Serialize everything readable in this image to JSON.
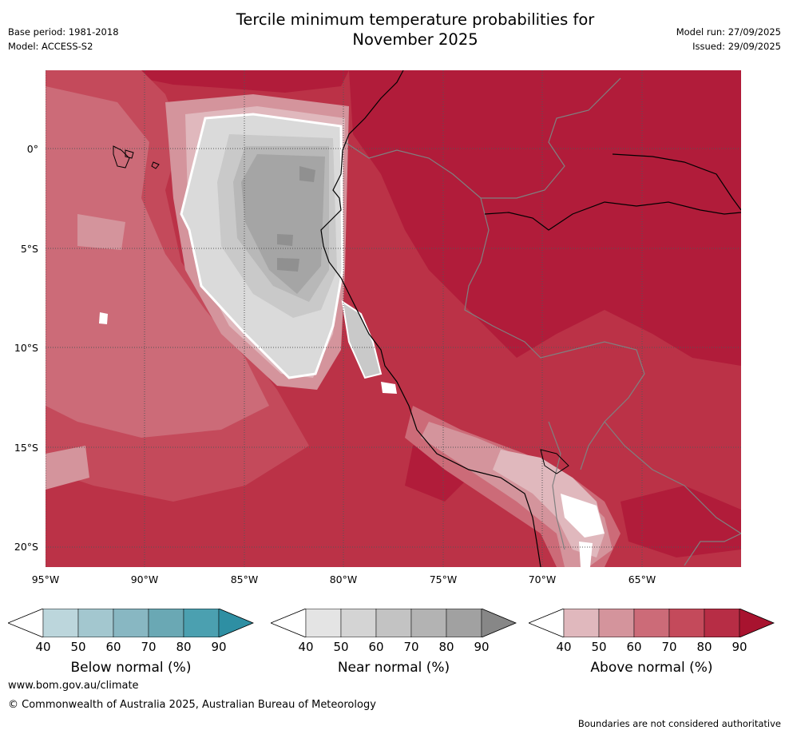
{
  "title_lines": [
    "Tercile minimum temperature probabilities for",
    "November 2025"
  ],
  "meta_left": [
    "Base period: 1981-2018",
    "Model: ACCESS-S2"
  ],
  "meta_right": [
    "Model run: 27/09/2025",
    "Issued: 29/09/2025"
  ],
  "map": {
    "lat_ticks": [
      "0°",
      "5°S",
      "10°S",
      "15°S",
      "20°S"
    ],
    "lon_ticks": [
      "95°W",
      "90°W",
      "85°W",
      "80°W",
      "75°W",
      "70°W",
      "65°W"
    ],
    "colors": {
      "above_90": "#b11c3a",
      "above_80": "#bb3247",
      "above_70": "#c44a5b",
      "above_60": "#cc6b78",
      "above_50": "#d4949c",
      "above_40": "#e0b8bd",
      "near_50": "#dadada",
      "near_60": "#c9c9c9",
      "near_70": "#b8b8b8",
      "near_80": "#a5a5a5",
      "near_90": "#909090",
      "coast": "#000000",
      "border": "#808080",
      "grid": "#555555"
    }
  },
  "colorbars": [
    {
      "label": "Below normal (%)",
      "ticks": [
        "40",
        "50",
        "60",
        "70",
        "80",
        "90"
      ],
      "colors": [
        "#ffffff",
        "#bcd6dc",
        "#a3c7cf",
        "#88b7c2",
        "#6aa8b4",
        "#4ba0b0",
        "#2e8fa3"
      ]
    },
    {
      "label": "Near normal (%)",
      "ticks": [
        "40",
        "50",
        "60",
        "70",
        "80",
        "90"
      ],
      "colors": [
        "#ffffff",
        "#e4e4e4",
        "#d4d4d4",
        "#c3c3c3",
        "#b3b3b3",
        "#a1a1a1",
        "#878787"
      ]
    },
    {
      "label": "Above normal (%)",
      "ticks": [
        "40",
        "50",
        "60",
        "70",
        "80",
        "90"
      ],
      "colors": [
        "#ffffff",
        "#e0b8bd",
        "#d4949c",
        "#cc6b78",
        "#c44a5b",
        "#b72d45",
        "#a8132f"
      ]
    }
  ],
  "footer": {
    "url": "www.bom.gov.au/climate",
    "copyright": "© Commonwealth of Australia 2025, Australian Bureau of Meteorology",
    "disclaimer": "Boundaries are not considered authoritative"
  }
}
